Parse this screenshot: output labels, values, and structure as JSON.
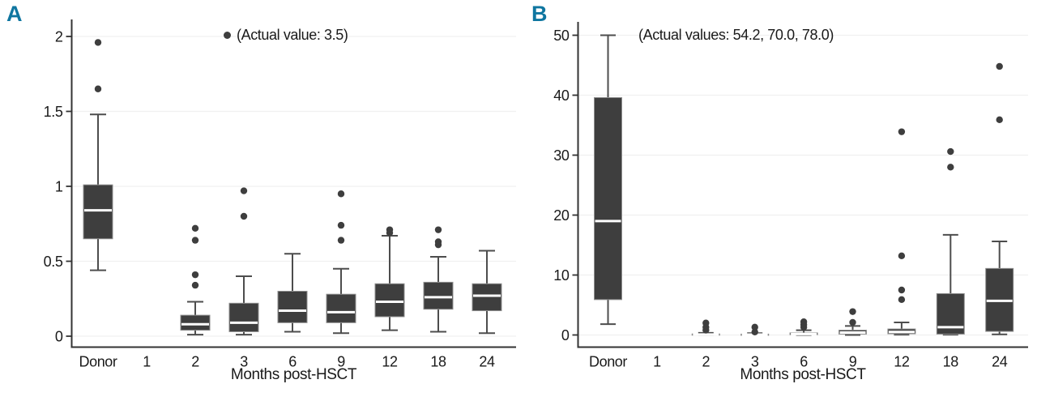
{
  "figure": {
    "background": "#ffffff"
  },
  "colors": {
    "panel_letter": "#0f76a0",
    "box_fill": "#3e3e3e",
    "box_stroke": "#8f8f8f",
    "whisker": "#4d4d4d",
    "median": "#ffffff",
    "outlier": "#3e3e3e",
    "axis": "#333333",
    "grid": "#f0f0f0",
    "text": "#1a1a1a"
  },
  "chart_data": [
    {
      "type": "box",
      "panel_label": "A",
      "annotation": "(Actual value: 3.5)",
      "annotation_has_bullet": true,
      "offscale_values": [
        3.5
      ],
      "xlabel": "Months post-HSCT",
      "categories": [
        "Donor",
        "1",
        "2",
        "3",
        "6",
        "9",
        "12",
        "18",
        "24"
      ],
      "ylim": [
        0,
        2.1
      ],
      "yticks": [
        0,
        0.5,
        1,
        1.5,
        2
      ],
      "ytick_labels": [
        "0",
        "0.5",
        "1",
        "1.5",
        "2"
      ],
      "grid": "faint horizontal lines at y ticks",
      "boxes": [
        {
          "category": "Donor",
          "min": 0.44,
          "q1": 0.65,
          "median": 0.84,
          "q3": 1.01,
          "max": 1.48,
          "outliers": [
            1.65,
            1.96
          ]
        },
        null,
        {
          "category": "2",
          "min": 0.01,
          "q1": 0.04,
          "median": 0.08,
          "q3": 0.14,
          "max": 0.23,
          "outliers": [
            0.34,
            0.41,
            0.64,
            0.72
          ]
        },
        {
          "category": "3",
          "min": 0.01,
          "q1": 0.03,
          "median": 0.09,
          "q3": 0.22,
          "max": 0.4,
          "outliers": [
            0.8,
            0.97
          ]
        },
        {
          "category": "6",
          "min": 0.03,
          "q1": 0.09,
          "median": 0.17,
          "q3": 0.3,
          "max": 0.55,
          "outliers": []
        },
        {
          "category": "9",
          "min": 0.02,
          "q1": 0.09,
          "median": 0.16,
          "q3": 0.28,
          "max": 0.45,
          "outliers": [
            0.64,
            0.74,
            0.95
          ]
        },
        {
          "category": "12",
          "min": 0.04,
          "q1": 0.13,
          "median": 0.23,
          "q3": 0.35,
          "max": 0.67,
          "outliers": [
            0.69,
            0.71
          ]
        },
        {
          "category": "18",
          "min": 0.03,
          "q1": 0.18,
          "median": 0.26,
          "q3": 0.36,
          "max": 0.53,
          "outliers": [
            0.61,
            0.63,
            0.71
          ]
        },
        {
          "category": "24",
          "min": 0.02,
          "q1": 0.17,
          "median": 0.27,
          "q3": 0.35,
          "max": 0.57,
          "outliers": []
        }
      ]
    },
    {
      "type": "box",
      "panel_label": "B",
      "annotation": "(Actual values: 54.2, 70.0, 78.0)",
      "annotation_has_bullet": false,
      "offscale_values": [
        54.2,
        70.0,
        78.0
      ],
      "xlabel": "Months post-HSCT",
      "categories": [
        "Donor",
        "1",
        "2",
        "3",
        "6",
        "9",
        "12",
        "18",
        "24"
      ],
      "ylim": [
        0,
        50
      ],
      "yticks": [
        0,
        10,
        20,
        30,
        40,
        50
      ],
      "ytick_labels": [
        "0",
        "10",
        "20",
        "30",
        "40",
        "50"
      ],
      "grid": "faint horizontal lines at y ticks",
      "boxes": [
        {
          "category": "Donor",
          "min": 1.8,
          "q1": 5.9,
          "median": 19.0,
          "q3": 39.6,
          "max": 50.0,
          "outliers": []
        },
        null,
        {
          "category": "2",
          "min": 0.0,
          "q1": 0.02,
          "median": 0.08,
          "q3": 0.18,
          "max": 0.35,
          "outliers": [
            0.8,
            1.3,
            2.0
          ]
        },
        {
          "category": "3",
          "min": 0.0,
          "q1": 0.02,
          "median": 0.06,
          "q3": 0.15,
          "max": 0.3,
          "outliers": [
            0.5,
            1.3
          ]
        },
        {
          "category": "6",
          "min": 0.0,
          "q1": 0.05,
          "median": 0.15,
          "q3": 0.35,
          "max": 0.8,
          "outliers": [
            1.3,
            1.7,
            2.2
          ]
        },
        {
          "category": "9",
          "min": 0.0,
          "q1": 0.15,
          "median": 0.4,
          "q3": 0.8,
          "max": 1.5,
          "outliers": [
            2.1,
            3.9
          ]
        },
        {
          "category": "12",
          "min": 0.05,
          "q1": 0.2,
          "median": 0.5,
          "q3": 1.0,
          "max": 2.1,
          "outliers": [
            5.9,
            7.5,
            13.2,
            33.9
          ]
        },
        {
          "category": "18",
          "min": 0.05,
          "q1": 0.15,
          "median": 1.3,
          "q3": 6.9,
          "max": 16.7,
          "outliers": [
            28.0,
            30.6
          ]
        },
        {
          "category": "24",
          "min": 0.1,
          "q1": 0.6,
          "median": 5.7,
          "q3": 11.1,
          "max": 15.6,
          "outliers": [
            35.9,
            44.8
          ]
        }
      ]
    }
  ]
}
